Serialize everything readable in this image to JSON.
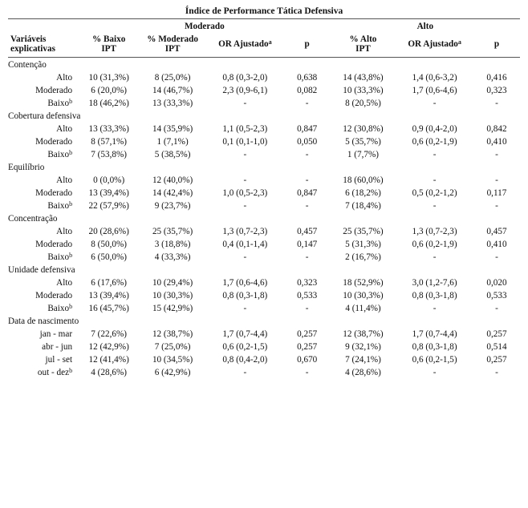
{
  "title": "Índice de Performance Tática Defensiva",
  "groups": {
    "moderado": "Moderado",
    "alto": "Alto"
  },
  "col_heads": {
    "var": "Variáveis\nexplicativas",
    "baixo": "% Baixo\nIPT",
    "moder": "% Moderado\nIPT",
    "orA": "OR Ajustado",
    "orA_sup": "a",
    "p": "p",
    "alto": "% Alto\nIPT"
  },
  "sup_b": "b",
  "sections": [
    {
      "name": "Contenção",
      "rows": [
        {
          "label": "Alto",
          "baixo": "10 (31,3%)",
          "moder": "8 (25,0%)",
          "orM": "0,8 (0,3-2,0)",
          "pM": "0,638",
          "alto": "14 (43,8%)",
          "orA": "1,4 (0,6-3,2)",
          "pA": "0,416"
        },
        {
          "label": "Moderado",
          "baixo": "6 (20,0%)",
          "moder": "14 (46,7%)",
          "orM": "2,3 (0,9-6,1)",
          "pM": "0,082",
          "alto": "10 (33,3%)",
          "orA": "1,7 (0,6-4,6)",
          "pA": "0,323"
        },
        {
          "label": "Baixo",
          "sup": "b",
          "baixo": "18 (46,2%)",
          "moder": "13 (33,3%)",
          "orM": "-",
          "pM": "-",
          "alto": "8 (20,5%)",
          "orA": "-",
          "pA": "-"
        }
      ]
    },
    {
      "name": "Cobertura defensiva",
      "rows": [
        {
          "label": "Alto",
          "baixo": "13 (33,3%)",
          "moder": "14 (35,9%)",
          "orM": "1,1 (0,5-2,3)",
          "pM": "0,847",
          "alto": "12 (30,8%)",
          "orA": "0,9 (0,4-2,0)",
          "pA": "0,842"
        },
        {
          "label": "Moderado",
          "baixo": "8 (57,1%)",
          "moder": "1 (7,1%)",
          "orM": "0,1 (0,1-1,0)",
          "pM": "0,050",
          "alto": "5 (35,7%)",
          "orA": "0,6 (0,2-1,9)",
          "pA": "0,410"
        },
        {
          "label": "Baixo",
          "sup": "b",
          "baixo": "7 (53,8%)",
          "moder": "5 (38,5%)",
          "orM": "-",
          "pM": "-",
          "alto": "1 (7,7%)",
          "orA": "-",
          "pA": "-"
        }
      ]
    },
    {
      "name": "Equilíbrio",
      "rows": [
        {
          "label": "Alto",
          "baixo": "0 (0,0%)",
          "moder": "12 (40,0%)",
          "orM": "-",
          "pM": "-",
          "alto": "18 (60,0%)",
          "orA": "-",
          "pA": "-"
        },
        {
          "label": "Moderado",
          "baixo": "13 (39,4%)",
          "moder": "14 (42,4%)",
          "orM": "1,0 (0,5-2,3)",
          "pM": "0,847",
          "alto": "6 (18,2%)",
          "orA": "0,5 (0,2-1,2)",
          "pA": "0,117"
        },
        {
          "label": "Baixo",
          "sup": "b",
          "baixo": "22 (57,9%)",
          "moder": "9 (23,7%)",
          "orM": "-",
          "pM": "-",
          "alto": "7 (18,4%)",
          "orA": "-",
          "pA": "-"
        }
      ]
    },
    {
      "name": "Concentração",
      "rows": [
        {
          "label": "Alto",
          "baixo": "20 (28,6%)",
          "moder": "25 (35,7%)",
          "orM": "1,3 (0,7-2,3)",
          "pM": "0,457",
          "alto": "25 (35,7%)",
          "orA": "1,3 (0,7-2,3)",
          "pA": "0,457"
        },
        {
          "label": "Moderado",
          "baixo": "8 (50,0%)",
          "moder": "3 (18,8%)",
          "orM": "0,4 (0,1-1,4)",
          "pM": "0,147",
          "alto": "5 (31,3%)",
          "orA": "0,6 (0,2-1,9)",
          "pA": "0,410"
        },
        {
          "label": "Baixo",
          "sup": "b",
          "baixo": "6 (50,0%)",
          "moder": "4 (33,3%)",
          "orM": "-",
          "pM": "-",
          "alto": "2 (16,7%)",
          "orA": "-",
          "pA": "-"
        }
      ]
    },
    {
      "name": "Unidade defensiva",
      "rows": [
        {
          "label": "Alto",
          "baixo": "6 (17,6%)",
          "moder": "10 (29,4%)",
          "orM": "1,7 (0,6-4,6)",
          "pM": "0,323",
          "alto": "18 (52,9%)",
          "orA": "3,0 (1,2-7,6)",
          "pA": "0,020"
        },
        {
          "label": "Moderado",
          "baixo": "13 (39,4%)",
          "moder": "10 (30,3%)",
          "orM": "0,8 (0,3-1,8)",
          "pM": "0,533",
          "alto": "10 (30,3%)",
          "orA": "0,8 (0,3-1,8)",
          "pA": "0,533"
        },
        {
          "label": "Baixo",
          "sup": "b",
          "baixo": "16 (45,7%)",
          "moder": "15 (42,9%)",
          "orM": "-",
          "pM": "-",
          "alto": "4 (11,4%)",
          "orA": "-",
          "pA": "-"
        }
      ]
    },
    {
      "name": "Data de nascimento",
      "rows": [
        {
          "label": "jan - mar",
          "baixo": "7 (22,6%)",
          "moder": "12 (38,7%)",
          "orM": "1,7 (0,7-4,4)",
          "pM": "0,257",
          "alto": "12 (38,7%)",
          "orA": "1,7 (0,7-4,4)",
          "pA": "0,257"
        },
        {
          "label": "abr - jun",
          "baixo": "12 (42,9%)",
          "moder": "7 (25,0%)",
          "orM": "0,6 (0,2-1,5)",
          "pM": "0,257",
          "alto": "9 (32,1%)",
          "orA": "0,8 (0,3-1,8)",
          "pA": "0,514"
        },
        {
          "label": "jul - set",
          "baixo": "12 (41,4%)",
          "moder": "10 (34,5%)",
          "orM": "0,8 (0,4-2,0)",
          "pM": "0,670",
          "alto": "7 (24,1%)",
          "orA": "0,6 (0,2-1,5)",
          "pA": "0,257"
        },
        {
          "label": "out - dez",
          "sup": "b",
          "baixo": "4 (28,6%)",
          "moder": "6 (42,9%)",
          "orM": "-",
          "pM": "-",
          "alto": "4 (28,6%)",
          "orA": "-",
          "pA": "-"
        }
      ]
    }
  ]
}
